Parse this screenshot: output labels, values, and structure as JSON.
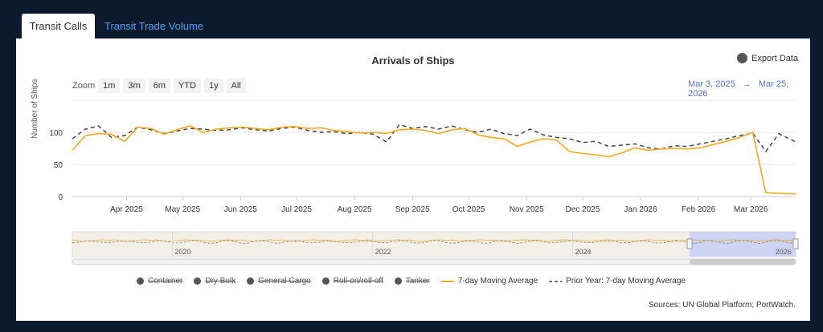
{
  "tabs": [
    {
      "label": "Transit Calls"
    },
    {
      "label": "Transit Trade Volume"
    }
  ],
  "export_label": "Export Data",
  "zoom": {
    "label": "Zoom",
    "buttons": [
      "1m",
      "3m",
      "6m",
      "YTD",
      "1y",
      "All"
    ]
  },
  "range": {
    "from": "Mar 3, 2025",
    "arrow": "→",
    "to": "Mar 25, 2026"
  },
  "navigator_labels": [
    "2020",
    "2022",
    "2024",
    "2026"
  ],
  "legend": [
    {
      "label": "Container",
      "hidden": true
    },
    {
      "label": "Dry Bulk",
      "hidden": true
    },
    {
      "label": "General Cargo",
      "hidden": true
    },
    {
      "label": "Roll-on/roll-off",
      "hidden": true
    },
    {
      "label": "Tanker",
      "hidden": true
    },
    {
      "label": "7-day Moving Average",
      "hidden": false
    },
    {
      "label": "Prior Year: 7-day Moving Average",
      "hidden": false
    }
  ],
  "sources": "Sources: UN Global Platform; PortWatch.",
  "colors": {
    "current": "#f4a91c",
    "prior": "#444444",
    "selection": "#c9d0f5",
    "grid": "#e6e6e6"
  },
  "chart_data": {
    "type": "line",
    "title": "Arrivals of Ships",
    "ylabel": "Number of Ships",
    "ylim": [
      0,
      150
    ],
    "yticks": [
      0,
      50,
      100
    ],
    "xlim": [
      "2025-03-03",
      "2026-03-25"
    ],
    "xticks": [
      {
        "date": "2025-04-01",
        "label": "Apr 2025"
      },
      {
        "date": "2025-05-01",
        "label": "May 2025"
      },
      {
        "date": "2025-06-01",
        "label": "Jun 2025"
      },
      {
        "date": "2025-07-01",
        "label": "Jul 2025"
      },
      {
        "date": "2025-08-01",
        "label": "Aug 2025"
      },
      {
        "date": "2025-09-01",
        "label": "Sep 2025"
      },
      {
        "date": "2025-10-01",
        "label": "Oct 2025"
      },
      {
        "date": "2025-11-01",
        "label": "Nov 2025"
      },
      {
        "date": "2025-12-01",
        "label": "Dec 2025"
      },
      {
        "date": "2026-01-01",
        "label": "Jan 2026"
      },
      {
        "date": "2026-02-01",
        "label": "Feb 2026"
      },
      {
        "date": "2026-03-01",
        "label": "Mar 2026"
      }
    ],
    "series": [
      {
        "name": "7-day Moving Average",
        "x": [
          "2025-03-03",
          "2025-03-10",
          "2025-03-17",
          "2025-03-24",
          "2025-03-31",
          "2025-04-07",
          "2025-04-14",
          "2025-04-21",
          "2025-04-28",
          "2025-05-05",
          "2025-05-12",
          "2025-05-19",
          "2025-05-26",
          "2025-06-02",
          "2025-06-09",
          "2025-06-16",
          "2025-06-23",
          "2025-06-30",
          "2025-07-07",
          "2025-07-14",
          "2025-07-21",
          "2025-07-28",
          "2025-08-04",
          "2025-08-11",
          "2025-08-18",
          "2025-08-25",
          "2025-09-01",
          "2025-09-08",
          "2025-09-15",
          "2025-09-22",
          "2025-09-29",
          "2025-10-06",
          "2025-10-13",
          "2025-10-20",
          "2025-10-27",
          "2025-11-03",
          "2025-11-10",
          "2025-11-17",
          "2025-11-24",
          "2025-12-01",
          "2025-12-08",
          "2025-12-15",
          "2025-12-22",
          "2025-12-29",
          "2026-01-05",
          "2026-01-12",
          "2026-01-19",
          "2026-01-26",
          "2026-02-02",
          "2026-02-09",
          "2026-02-16",
          "2026-02-23",
          "2026-03-02",
          "2026-03-09",
          "2026-03-16",
          "2026-03-25"
        ],
        "y": [
          72,
          95,
          98,
          97,
          86,
          108,
          106,
          97,
          104,
          110,
          100,
          105,
          107,
          108,
          106,
          104,
          108,
          109,
          106,
          107,
          103,
          101,
          99,
          100,
          98,
          104,
          105,
          103,
          98,
          104,
          106,
          96,
          92,
          90,
          78,
          85,
          90,
          88,
          70,
          67,
          65,
          62,
          68,
          76,
          72,
          74,
          75,
          74,
          76,
          81,
          86,
          92,
          100,
          6,
          5,
          4
        ]
      },
      {
        "name": "Prior Year: 7-day Moving Average",
        "x": [
          "2025-03-03",
          "2025-03-10",
          "2025-03-17",
          "2025-03-24",
          "2025-03-31",
          "2025-04-07",
          "2025-04-14",
          "2025-04-21",
          "2025-04-28",
          "2025-05-05",
          "2025-05-12",
          "2025-05-19",
          "2025-05-26",
          "2025-06-02",
          "2025-06-09",
          "2025-06-16",
          "2025-06-23",
          "2025-06-30",
          "2025-07-07",
          "2025-07-14",
          "2025-07-21",
          "2025-07-28",
          "2025-08-04",
          "2025-08-11",
          "2025-08-18",
          "2025-08-25",
          "2025-09-01",
          "2025-09-08",
          "2025-09-15",
          "2025-09-22",
          "2025-09-29",
          "2025-10-06",
          "2025-10-13",
          "2025-10-20",
          "2025-10-27",
          "2025-11-03",
          "2025-11-10",
          "2025-11-17",
          "2025-11-24",
          "2025-12-01",
          "2025-12-08",
          "2025-12-15",
          "2025-12-22",
          "2025-12-29",
          "2026-01-05",
          "2026-01-12",
          "2026-01-19",
          "2026-01-26",
          "2026-02-02",
          "2026-02-09",
          "2026-02-16",
          "2026-02-23",
          "2026-03-02",
          "2026-03-09",
          "2026-03-16",
          "2026-03-25"
        ],
        "y": [
          90,
          105,
          110,
          92,
          95,
          108,
          104,
          98,
          102,
          106,
          105,
          103,
          104,
          107,
          104,
          102,
          106,
          108,
          103,
          100,
          101,
          98,
          100,
          97,
          85,
          112,
          106,
          109,
          105,
          110,
          104,
          100,
          105,
          98,
          95,
          105,
          96,
          92,
          90,
          84,
          86,
          78,
          80,
          82,
          76,
          74,
          79,
          78,
          82,
          86,
          90,
          95,
          99,
          70,
          98,
          85
        ]
      }
    ],
    "navigator": {
      "xticks": [
        "2020",
        "2022",
        "2024",
        "2026"
      ],
      "selection": [
        "2025-03-03",
        "2026-03-25"
      ]
    },
    "grid": true,
    "legend_position": "bottom"
  }
}
